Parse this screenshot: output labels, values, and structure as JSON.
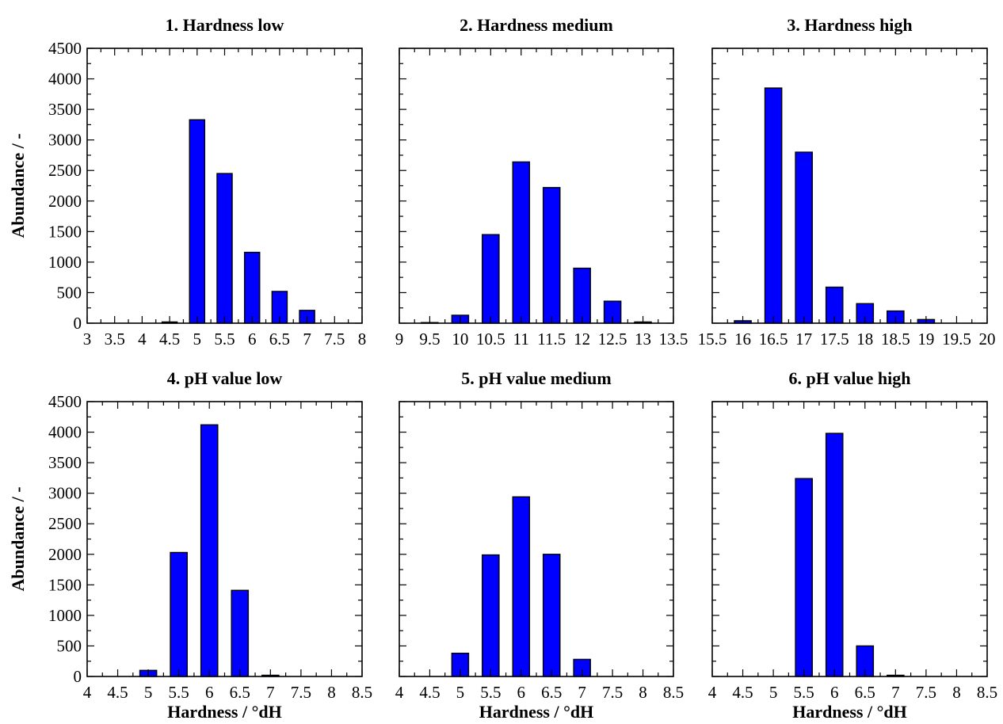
{
  "chart_data": [
    {
      "type": "bar",
      "title": "1. Hardness low",
      "xlabel": "",
      "ylabel": "Abundance / -",
      "xlim": [
        3,
        8
      ],
      "ylim": [
        0,
        4500
      ],
      "xticks": [
        "3",
        "3.5",
        "4",
        "4.5",
        "5",
        "5.5",
        "6",
        "6.5",
        "7",
        "7.5",
        "8"
      ],
      "yticks": [
        "0",
        "500",
        "1000",
        "1500",
        "2000",
        "2500",
        "3000",
        "3500",
        "4000",
        "4500"
      ],
      "x": [
        4.5,
        5,
        5.5,
        6,
        6.5,
        7
      ],
      "values": [
        20,
        3330,
        2450,
        1160,
        520,
        210
      ],
      "bar_color": "#0000ff"
    },
    {
      "type": "bar",
      "title": "2. Hardness medium",
      "xlabel": "",
      "ylabel": "",
      "xlim": [
        9,
        13.5
      ],
      "ylim": [
        0,
        4500
      ],
      "xticks": [
        "9",
        "9.5",
        "10",
        "10.5",
        "11",
        "11.5",
        "12",
        "12.5",
        "13",
        "13.5"
      ],
      "yticks": [],
      "x": [
        9.5,
        10,
        10.5,
        11,
        11.5,
        12,
        12.5,
        13
      ],
      "values": [
        10,
        130,
        1450,
        2640,
        2220,
        900,
        360,
        20
      ],
      "bar_color": "#0000ff"
    },
    {
      "type": "bar",
      "title": "3. Hardness high",
      "xlabel": "",
      "ylabel": "",
      "xlim": [
        15.5,
        20
      ],
      "ylim": [
        0,
        4500
      ],
      "xticks": [
        "15.5",
        "16",
        "16.5",
        "17",
        "17.5",
        "18",
        "18.5",
        "19",
        "19.5",
        "20"
      ],
      "yticks": [],
      "x": [
        16,
        16.5,
        17,
        17.5,
        18,
        18.5,
        19
      ],
      "values": [
        40,
        3850,
        2800,
        590,
        320,
        200,
        60
      ],
      "bar_color": "#0000ff"
    },
    {
      "type": "bar",
      "title": "4. pH value low",
      "xlabel": "Hardness / °dH",
      "ylabel": "Abundance / -",
      "xlim": [
        4,
        8.5
      ],
      "ylim": [
        0,
        4500
      ],
      "xticks": [
        "4",
        "4.5",
        "5",
        "5.5",
        "6",
        "6.5",
        "7",
        "7.5",
        "8",
        "8.5"
      ],
      "yticks": [
        "0",
        "500",
        "1000",
        "1500",
        "2000",
        "2500",
        "3000",
        "3500",
        "4000",
        "4500"
      ],
      "x": [
        5,
        5.5,
        6,
        6.5,
        7
      ],
      "values": [
        100,
        2030,
        4120,
        1410,
        20
      ],
      "bar_color": "#0000ff"
    },
    {
      "type": "bar",
      "title": "5. pH value medium",
      "xlabel": "Hardness / °dH",
      "ylabel": "",
      "xlim": [
        4,
        8.5
      ],
      "ylim": [
        0,
        4500
      ],
      "xticks": [
        "4",
        "4.5",
        "5",
        "5.5",
        "6",
        "6.5",
        "7",
        "7.5",
        "8",
        "8.5"
      ],
      "yticks": [],
      "x": [
        5,
        5.5,
        6,
        6.5,
        7
      ],
      "values": [
        380,
        1990,
        2940,
        2000,
        280
      ],
      "bar_color": "#0000ff"
    },
    {
      "type": "bar",
      "title": "6. pH value high",
      "xlabel": "Hardness / °dH",
      "ylabel": "",
      "xlim": [
        4,
        8.5
      ],
      "ylim": [
        0,
        4500
      ],
      "xticks": [
        "4",
        "4.5",
        "5",
        "5.5",
        "6",
        "6.5",
        "7",
        "7.5",
        "8",
        "8.5"
      ],
      "yticks": [],
      "x": [
        5.5,
        6,
        6.5,
        7
      ],
      "values": [
        3240,
        3980,
        500,
        20
      ],
      "bar_color": "#0000ff"
    }
  ]
}
